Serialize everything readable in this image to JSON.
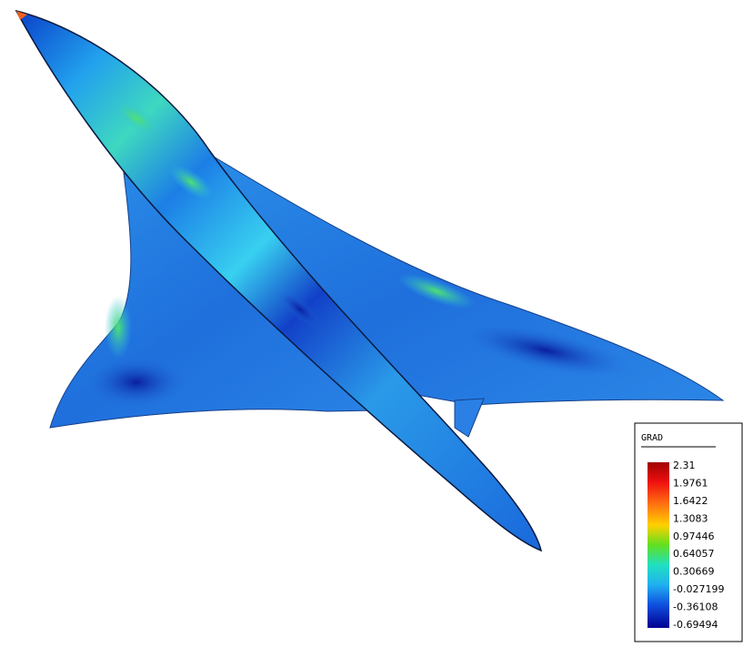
{
  "legend": {
    "title": "GRAD",
    "ticks": [
      2.31,
      1.9761,
      1.6422,
      1.3083,
      0.97446,
      0.64057,
      0.30669,
      -0.027199,
      -0.36108,
      -0.69494
    ]
  }
}
